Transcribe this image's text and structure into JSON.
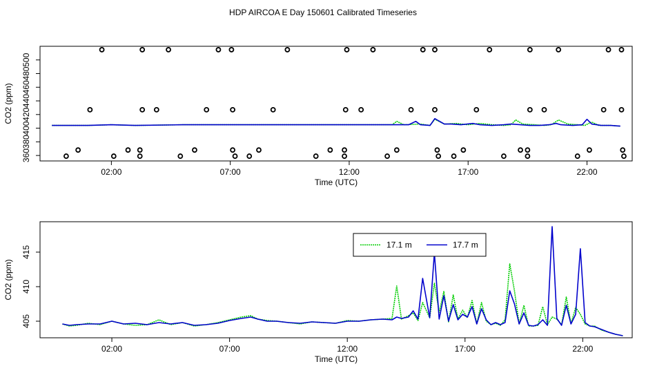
{
  "page_title": "HDP AIRCOA E  Day 150601  Calibrated Timeseries",
  "chart_data": [
    {
      "type": "scatter",
      "xlabel": "Time (UTC)",
      "ylabel": "CO2 (ppm)",
      "xlim": [
        -1,
        23.9
      ],
      "ylim": [
        352,
        520
      ],
      "x_ticks": [
        2,
        7,
        12,
        17,
        22
      ],
      "x_tick_labels": [
        "02:00",
        "07:00",
        "12:00",
        "17:00",
        "22:00"
      ],
      "y_ticks": [
        360,
        380,
        400,
        420,
        440,
        460,
        480,
        500
      ],
      "y_tick_labels": [
        "360",
        "380",
        "400",
        "420",
        "440",
        "460",
        "480",
        "500"
      ],
      "grid": false,
      "points": [
        {
          "x": 1.6,
          "y": 515
        },
        {
          "x": 3.3,
          "y": 515
        },
        {
          "x": 4.4,
          "y": 515
        },
        {
          "x": 6.5,
          "y": 515
        },
        {
          "x": 7.05,
          "y": 515
        },
        {
          "x": 9.4,
          "y": 515
        },
        {
          "x": 11.9,
          "y": 515
        },
        {
          "x": 13.0,
          "y": 515
        },
        {
          "x": 15.1,
          "y": 515
        },
        {
          "x": 15.6,
          "y": 515
        },
        {
          "x": 17.9,
          "y": 515
        },
        {
          "x": 19.6,
          "y": 515
        },
        {
          "x": 20.8,
          "y": 515
        },
        {
          "x": 22.9,
          "y": 515
        },
        {
          "x": 23.45,
          "y": 515
        },
        {
          "x": 1.1,
          "y": 427
        },
        {
          "x": 3.3,
          "y": 427
        },
        {
          "x": 3.9,
          "y": 427
        },
        {
          "x": 6.0,
          "y": 427
        },
        {
          "x": 7.1,
          "y": 427
        },
        {
          "x": 8.8,
          "y": 427
        },
        {
          "x": 11.85,
          "y": 427
        },
        {
          "x": 12.5,
          "y": 427
        },
        {
          "x": 14.6,
          "y": 427
        },
        {
          "x": 15.6,
          "y": 427
        },
        {
          "x": 17.35,
          "y": 427
        },
        {
          "x": 19.6,
          "y": 427
        },
        {
          "x": 20.2,
          "y": 427
        },
        {
          "x": 22.7,
          "y": 427
        },
        {
          "x": 23.45,
          "y": 427
        },
        {
          "x": 0.6,
          "y": 368
        },
        {
          "x": 2.7,
          "y": 368
        },
        {
          "x": 3.2,
          "y": 368
        },
        {
          "x": 5.5,
          "y": 368
        },
        {
          "x": 7.1,
          "y": 368
        },
        {
          "x": 8.2,
          "y": 368
        },
        {
          "x": 11.2,
          "y": 368
        },
        {
          "x": 11.8,
          "y": 368
        },
        {
          "x": 14.0,
          "y": 368
        },
        {
          "x": 15.7,
          "y": 368
        },
        {
          "x": 16.8,
          "y": 368
        },
        {
          "x": 19.2,
          "y": 368
        },
        {
          "x": 19.5,
          "y": 368
        },
        {
          "x": 22.1,
          "y": 368
        },
        {
          "x": 23.5,
          "y": 368
        },
        {
          "x": 0.1,
          "y": 359
        },
        {
          "x": 2.1,
          "y": 359
        },
        {
          "x": 3.2,
          "y": 359
        },
        {
          "x": 4.9,
          "y": 359
        },
        {
          "x": 7.2,
          "y": 359
        },
        {
          "x": 7.8,
          "y": 359
        },
        {
          "x": 10.6,
          "y": 359
        },
        {
          "x": 11.8,
          "y": 359
        },
        {
          "x": 13.6,
          "y": 359
        },
        {
          "x": 15.75,
          "y": 359
        },
        {
          "x": 16.4,
          "y": 359
        },
        {
          "x": 18.5,
          "y": 359
        },
        {
          "x": 19.5,
          "y": 359
        },
        {
          "x": 21.6,
          "y": 359
        },
        {
          "x": 23.55,
          "y": 359
        }
      ],
      "series": [
        {
          "color": "#00cc00",
          "x": [
            -0.5,
            1,
            2,
            3,
            5,
            7.5,
            9,
            11,
            13,
            13.8,
            14.0,
            14.3,
            15.0,
            15.4,
            15.6,
            16.0,
            16.5,
            17.0,
            17.5,
            18.0,
            18.5,
            18.8,
            19.0,
            19.3,
            19.8,
            20.2,
            20.5,
            20.8,
            21.2,
            21.6,
            21.9,
            22.2,
            22.5,
            23.0,
            23.4
          ],
          "values": [
            404,
            404,
            405,
            404,
            405,
            405,
            405,
            405,
            405,
            405,
            410,
            405,
            406,
            404,
            413,
            406,
            407,
            405,
            407,
            405,
            404,
            405,
            412,
            406,
            405,
            404,
            405,
            412,
            406,
            405,
            404,
            409,
            404,
            404,
            403
          ]
        },
        {
          "color": "#0000cc",
          "x": [
            -0.5,
            1,
            2,
            3,
            5,
            7.5,
            9,
            11,
            13,
            14.0,
            14.5,
            14.8,
            15.0,
            15.4,
            15.6,
            16.0,
            16.3,
            16.7,
            17.2,
            17.5,
            18.0,
            18.5,
            18.8,
            19.2,
            19.6,
            20.0,
            20.4,
            20.7,
            20.9,
            21.4,
            21.8,
            22.0,
            22.2,
            22.6,
            23.0,
            23.4
          ],
          "values": [
            404,
            404,
            405,
            404,
            405,
            405,
            405,
            405,
            405,
            405,
            405,
            410,
            405,
            404,
            414,
            406,
            406,
            405,
            407,
            405,
            404,
            405,
            406,
            405,
            404,
            404,
            405,
            407,
            405,
            404,
            405,
            413,
            406,
            404,
            404,
            403
          ]
        }
      ]
    },
    {
      "type": "line",
      "xlabel": "Time (UTC)",
      "ylabel": "CO2 (ppm)",
      "xlim": [
        -1.05,
        24.1
      ],
      "ylim": [
        402.6,
        419.4
      ],
      "x_ticks": [
        2,
        7,
        12,
        17,
        22
      ],
      "x_tick_labels": [
        "02:00",
        "07:00",
        "12:00",
        "17:00",
        "22:00"
      ],
      "y_ticks": [
        405,
        410,
        415
      ],
      "y_tick_labels": [
        "405",
        "410",
        "415"
      ],
      "grid": false,
      "legend_position": "top-right",
      "series": [
        {
          "name": "17.1 m",
          "color": "#00cc00",
          "x": [
            -0.1,
            0.2,
            0.5,
            1.0,
            1.5,
            2.0,
            2.5,
            3.0,
            3.5,
            4.0,
            4.5,
            5.0,
            5.5,
            6.0,
            6.5,
            7.0,
            7.5,
            7.9,
            8.2,
            8.6,
            9.0,
            9.5,
            10.0,
            10.5,
            11.0,
            11.5,
            12.0,
            12.5,
            13.0,
            13.5,
            13.9,
            14.1,
            14.3,
            14.6,
            14.8,
            15.0,
            15.2,
            15.5,
            15.7,
            15.9,
            16.1,
            16.3,
            16.5,
            16.7,
            16.9,
            17.1,
            17.3,
            17.5,
            17.7,
            17.9,
            18.1,
            18.3,
            18.5,
            18.7,
            18.9,
            19.1,
            19.3,
            19.5,
            19.7,
            19.9,
            20.1,
            20.3,
            20.5,
            20.7,
            20.9,
            21.1,
            21.3,
            21.5,
            21.7,
            21.9,
            22.1,
            22.3,
            22.5,
            22.8,
            23.1,
            23.4,
            23.7
          ],
          "values": [
            404.6,
            404.3,
            404.4,
            404.7,
            404.5,
            405.0,
            404.6,
            404.4,
            404.5,
            405.2,
            404.5,
            404.8,
            404.3,
            404.5,
            404.8,
            405.2,
            405.6,
            405.8,
            405.3,
            405.1,
            405.0,
            404.8,
            404.6,
            404.9,
            404.8,
            404.7,
            405.1,
            405.0,
            405.2,
            405.3,
            405.4,
            410.1,
            405.3,
            405.8,
            406.2,
            405.1,
            407.7,
            405.5,
            410.5,
            406.3,
            409.3,
            404.9,
            408.8,
            405.3,
            406.6,
            405.5,
            408.0,
            404.6,
            407.7,
            405.0,
            404.5,
            404.7,
            404.4,
            405.2,
            413.3,
            409.4,
            404.6,
            407.3,
            404.3,
            404.3,
            404.4,
            407.1,
            404.5,
            405.6,
            405.3,
            404.5,
            408.5,
            404.6,
            407.0,
            406.0,
            404.6,
            404.3,
            404.3,
            403.7,
            403.4,
            403.1,
            402.9
          ]
        },
        {
          "name": "17.7 m",
          "color": "#0000cc",
          "x": [
            -0.1,
            0.2,
            0.5,
            1.0,
            1.5,
            2.0,
            2.5,
            3.0,
            3.5,
            4.0,
            4.5,
            5.0,
            5.5,
            6.0,
            6.5,
            7.0,
            7.5,
            7.9,
            8.2,
            8.6,
            9.0,
            9.5,
            10.0,
            10.5,
            11.0,
            11.5,
            12.0,
            12.5,
            13.0,
            13.5,
            13.9,
            14.1,
            14.3,
            14.6,
            14.8,
            15.0,
            15.2,
            15.5,
            15.7,
            15.9,
            16.1,
            16.3,
            16.5,
            16.7,
            16.9,
            17.1,
            17.3,
            17.5,
            17.7,
            17.9,
            18.1,
            18.3,
            18.5,
            18.7,
            18.9,
            19.1,
            19.3,
            19.5,
            19.7,
            19.9,
            20.1,
            20.3,
            20.5,
            20.7,
            20.9,
            21.1,
            21.3,
            21.5,
            21.7,
            21.9,
            22.1,
            22.3,
            22.5,
            22.8,
            23.1,
            23.4,
            23.7
          ],
          "values": [
            404.6,
            404.4,
            404.5,
            404.6,
            404.6,
            405.0,
            404.6,
            404.7,
            404.5,
            404.8,
            404.6,
            404.8,
            404.4,
            404.5,
            404.7,
            405.1,
            405.4,
            405.6,
            405.3,
            405.0,
            405.0,
            404.8,
            404.7,
            404.9,
            404.8,
            404.7,
            405.0,
            405.0,
            405.2,
            405.3,
            405.2,
            405.6,
            405.4,
            405.6,
            406.5,
            405.3,
            411.2,
            405.5,
            414.9,
            405.3,
            408.7,
            405.0,
            407.4,
            405.2,
            406.0,
            405.6,
            407.1,
            404.6,
            406.8,
            405.2,
            404.5,
            404.8,
            404.5,
            404.8,
            409.4,
            407.5,
            404.6,
            406.2,
            404.4,
            404.3,
            404.5,
            405.2,
            404.4,
            418.7,
            405.4,
            404.4,
            407.3,
            404.6,
            406.0,
            415.5,
            404.8,
            404.3,
            404.2,
            403.8,
            403.4,
            403.1,
            402.9
          ]
        }
      ]
    }
  ]
}
